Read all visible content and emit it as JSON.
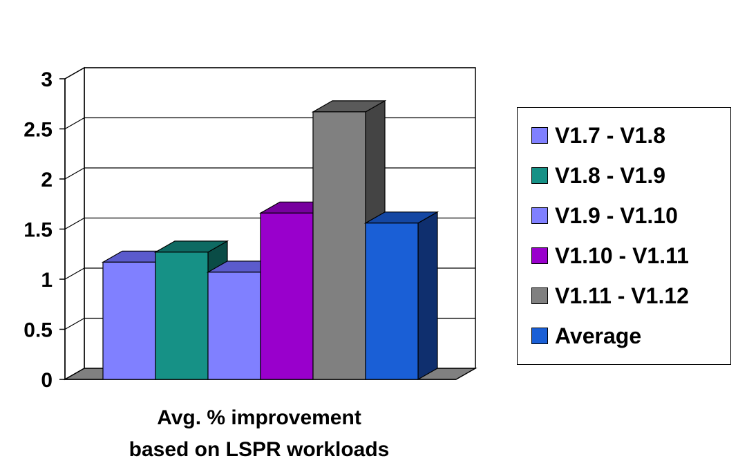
{
  "chart_data": {
    "type": "bar",
    "categories": [
      "Avg. % improvement based on LSPR workloads"
    ],
    "xlabel_lines": [
      "Avg. % improvement",
      "based on LSPR workloads"
    ],
    "series": [
      {
        "name": "V1.7 - V1.8",
        "values": [
          1.17
        ],
        "color": "#8080ff",
        "top_color": "#5b5bcc",
        "side_color": "#3c3c99"
      },
      {
        "name": "V1.8 - V1.9",
        "values": [
          1.27
        ],
        "color": "#169186",
        "top_color": "#0e6a62",
        "side_color": "#0a4c46"
      },
      {
        "name": "V1.9 - V1.10",
        "values": [
          1.07
        ],
        "color": "#8080ff",
        "top_color": "#5b5bcc",
        "side_color": "#3c3c99"
      },
      {
        "name": "V1.10 - V1.11",
        "values": [
          1.66
        ],
        "color": "#9900cc",
        "top_color": "#77009e",
        "side_color": "#550072"
      },
      {
        "name": "V1.11 - V1.12",
        "values": [
          2.67
        ],
        "color": "#808080",
        "top_color": "#5a5a5a",
        "side_color": "#444444"
      },
      {
        "name": "Average",
        "values": [
          1.56
        ],
        "color": "#1a5fd6",
        "top_color": "#1447a3",
        "side_color": "#0f2f6e"
      }
    ],
    "ylim": [
      0,
      3
    ],
    "yticks": [
      "0",
      "0.5",
      "1",
      "1.5",
      "2",
      "2.5",
      "3"
    ],
    "ytick_values": [
      0,
      0.5,
      1,
      1.5,
      2,
      2.5,
      3
    ],
    "grid": true,
    "legend_position": "right",
    "floor_color": "#808080"
  }
}
